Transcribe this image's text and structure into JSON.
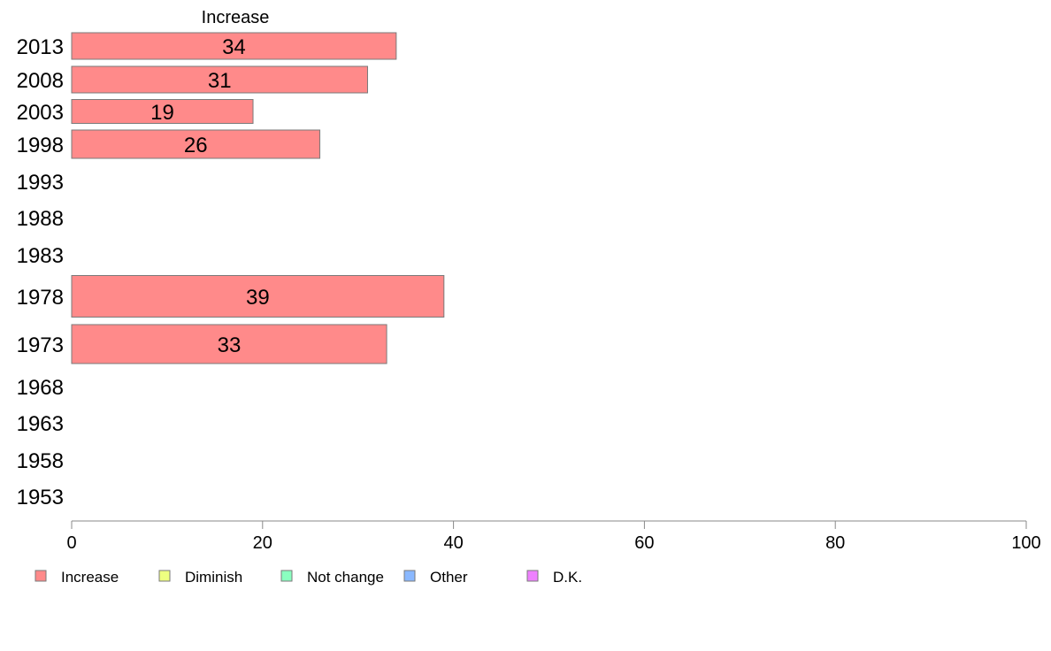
{
  "chart_data": {
    "type": "bar",
    "orientation": "horizontal",
    "title": "Increase",
    "categories": [
      "2013",
      "2008",
      "2003",
      "1998",
      "1993",
      "1988",
      "1983",
      "1978",
      "1973",
      "1968",
      "1963",
      "1958",
      "1953"
    ],
    "series": [
      {
        "name": "Increase",
        "color": "#ff8a8a",
        "values": [
          34,
          31,
          19,
          26,
          null,
          null,
          null,
          39,
          33,
          null,
          null,
          null,
          null
        ]
      }
    ],
    "xlim": [
      0,
      100
    ],
    "xticks": [
      "0",
      "20",
      "40",
      "60",
      "80",
      "100"
    ],
    "grid": false,
    "legend_position": "bottom",
    "legend": [
      {
        "label": "Increase",
        "color": "#ff8a8a"
      },
      {
        "label": "Diminish",
        "color": "#eeff80"
      },
      {
        "label": "Not change",
        "color": "#8affc0"
      },
      {
        "label": "Other",
        "color": "#8ab8ff"
      },
      {
        "label": "D.K.",
        "color": "#ee80ff"
      }
    ]
  }
}
